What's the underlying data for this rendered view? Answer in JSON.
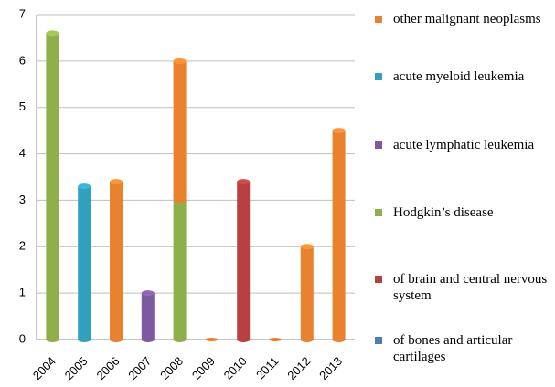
{
  "chart_data": {
    "type": "bar",
    "stacked": true,
    "categories": [
      "2004",
      "2005",
      "2006",
      "2007",
      "2008",
      "2009",
      "2010",
      "2011",
      "2012",
      "2013"
    ],
    "series": [
      {
        "name": "other malignant neoplasms",
        "color": "#e9822e",
        "values": [
          0,
          0,
          3.4,
          0,
          3,
          0,
          0,
          0,
          2,
          4.5
        ]
      },
      {
        "name": "acute myeloid leukemia",
        "color": "#31a0bf",
        "values": [
          0,
          3.3,
          0,
          0,
          0,
          0,
          0,
          0,
          0,
          0
        ]
      },
      {
        "name": "acute lymphatic leukemia",
        "color": "#7d5aa0",
        "values": [
          0,
          0,
          0,
          1,
          0,
          0,
          0,
          0,
          0,
          0
        ]
      },
      {
        "name": "Hodgkin’s disease",
        "color": "#8db04a",
        "values": [
          6.6,
          0,
          0,
          0,
          3,
          0,
          0,
          0,
          0,
          0
        ]
      },
      {
        "name": "of brain and central nervous system",
        "color": "#b94040",
        "values": [
          0,
          0,
          0,
          0,
          0,
          0,
          3.4,
          0,
          0,
          0
        ]
      },
      {
        "name": "of bones and articular cartilages",
        "color": "#4a7ebb",
        "values": [
          0,
          0,
          0,
          0,
          0,
          0,
          0,
          0,
          0,
          0
        ]
      }
    ],
    "ylim": [
      0,
      7
    ],
    "yticks": [
      0,
      1,
      2,
      3,
      4,
      5,
      6,
      7
    ],
    "grid": true,
    "legend": "right"
  }
}
